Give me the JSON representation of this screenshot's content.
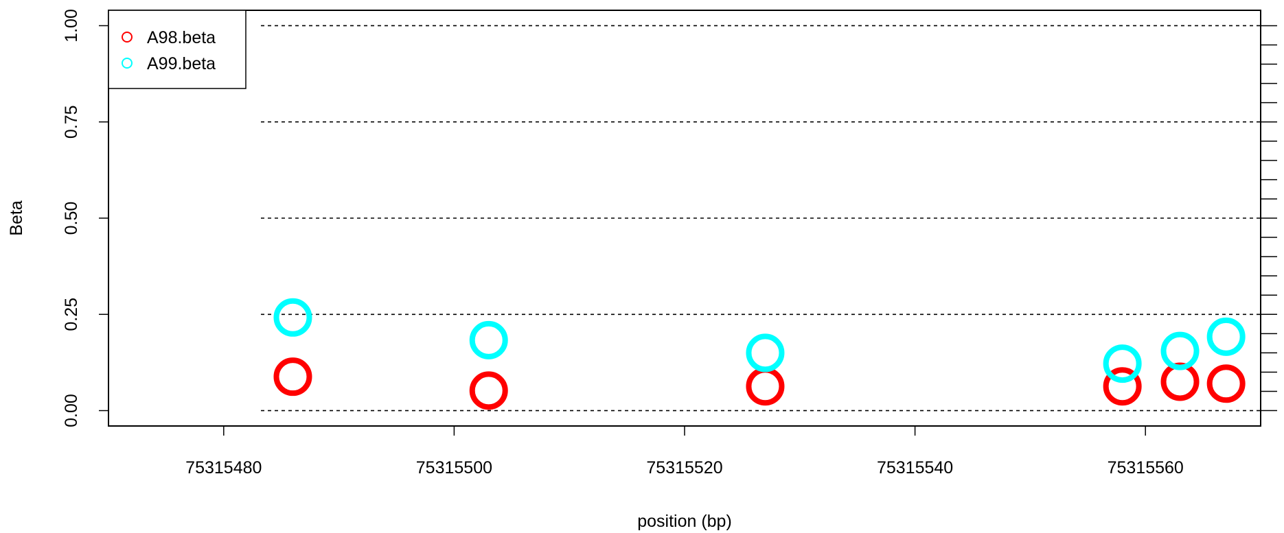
{
  "chart_data": {
    "type": "scatter",
    "xlabel": "position (bp)",
    "ylabel": "Beta",
    "xlim": [
      75315470,
      75315570
    ],
    "ylim": [
      -0.04,
      1.04
    ],
    "x_ticks": [
      75315480,
      75315500,
      75315520,
      75315540,
      75315560
    ],
    "x_tick_labels": [
      "75315480",
      "75315500",
      "75315520",
      "75315540",
      "75315560"
    ],
    "y_ticks": [
      0,
      0.25,
      0.5,
      0.75,
      1
    ],
    "y_tick_labels": [
      "0.00",
      "0.25",
      "0.50",
      "0.75",
      "1.00"
    ],
    "grid_y": [
      0,
      0.25,
      0.5,
      0.75,
      1
    ],
    "legend_position": "top-left",
    "series": [
      {
        "name": "A98.beta",
        "color": "#ff0000",
        "x": [
          75315486,
          75315503,
          75315527,
          75315558,
          75315563,
          75315567
        ],
        "y": [
          0.088,
          0.052,
          0.063,
          0.063,
          0.075,
          0.07
        ]
      },
      {
        "name": "A99.beta",
        "color": "#00ffff",
        "x": [
          75315486,
          75315503,
          75315527,
          75315558,
          75315563,
          75315567
        ],
        "y": [
          0.242,
          0.183,
          0.15,
          0.122,
          0.155,
          0.192
        ]
      }
    ]
  }
}
